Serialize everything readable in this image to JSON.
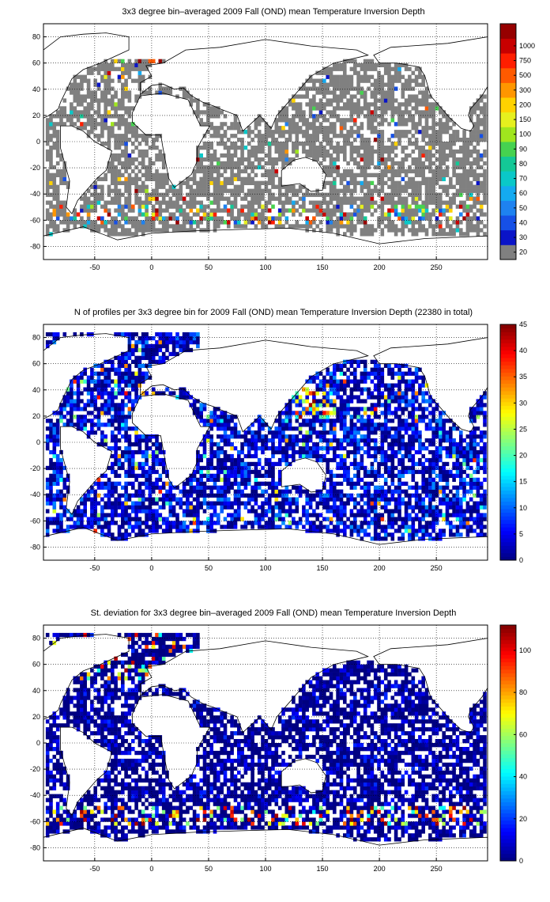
{
  "chart_data": [
    {
      "type": "heatmap",
      "title": "3x3 degree bin–averaged 2009 Fall (OND) mean Temperature Inversion Depth",
      "xlabel": "",
      "ylabel": "",
      "xlim": [
        -95,
        295
      ],
      "ylim": [
        -90,
        90
      ],
      "xticks": [
        -50,
        0,
        50,
        100,
        150,
        200,
        250
      ],
      "yticks": [
        80,
        60,
        40,
        20,
        0,
        -20,
        -40,
        -60,
        -80
      ],
      "grid": true,
      "colorbar": {
        "kind": "discrete",
        "labels": [
          "20",
          "30",
          "40",
          "50",
          "60",
          "70",
          "80",
          "90",
          "100",
          "150",
          "200",
          "300",
          "500",
          "750",
          "1000"
        ],
        "colors": [
          "#808080",
          "#0a14c8",
          "#1650e6",
          "#1e82f0",
          "#14aaf0",
          "#0ac8c8",
          "#14c896",
          "#46d250",
          "#a0e61e",
          "#e6f01e",
          "#ffd200",
          "#ff9600",
          "#ff5a00",
          "#ff1e00",
          "#c80000",
          "#960000"
        ]
      },
      "fields": {
        "gray": "dominant value bin (≤20) over most sampled open-ocean bins",
        "high_values": "scattered 100–1000 values along the Antarctic margin near 60S and in the North Atlantic 50–65N"
      }
    },
    {
      "type": "heatmap",
      "title": "N of profiles per 3x3 degree bin for 2009 Fall (OND) mean Temperature Inversion Depth  (22380 in total)",
      "xlabel": "",
      "ylabel": "",
      "xlim": [
        -95,
        295
      ],
      "ylim": [
        -90,
        90
      ],
      "xticks": [
        -50,
        0,
        50,
        100,
        150,
        200,
        250
      ],
      "yticks": [
        80,
        60,
        40,
        20,
        0,
        -20,
        -40,
        -60,
        -80
      ],
      "grid": true,
      "colorbar": {
        "kind": "continuous",
        "min": 0,
        "max": 45,
        "ticks": [
          0,
          5,
          10,
          15,
          20,
          25,
          30,
          35,
          40,
          45
        ],
        "colormap": "jet"
      },
      "fields": {
        "typical": "mostly 1–8 profiles per bin",
        "hotspots": "15–45 profiles near Japan (130–150E, 20–40N), Arabian Sea and scattered Pacific bins"
      }
    },
    {
      "type": "heatmap",
      "title": "St. deviation for 3x3 degree bin–averaged 2009 Fall (OND) mean Temperature Inversion Depth",
      "xlabel": "",
      "ylabel": "",
      "xlim": [
        -95,
        295
      ],
      "ylim": [
        -90,
        90
      ],
      "xticks": [
        -50,
        0,
        50,
        100,
        150,
        200,
        250
      ],
      "yticks": [
        80,
        60,
        40,
        20,
        0,
        -20,
        -40,
        -60,
        -80
      ],
      "grid": true,
      "colorbar": {
        "kind": "continuous",
        "min": 0,
        "max": 112,
        "ticks": [
          0,
          20,
          40,
          60,
          80,
          100
        ],
        "colormap": "jet"
      },
      "fields": {
        "typical": "near 0 over most sampled bins",
        "hotspots": "60–112 along the Antarctic margin near 60S and in the North Atlantic 50–65N"
      }
    }
  ]
}
